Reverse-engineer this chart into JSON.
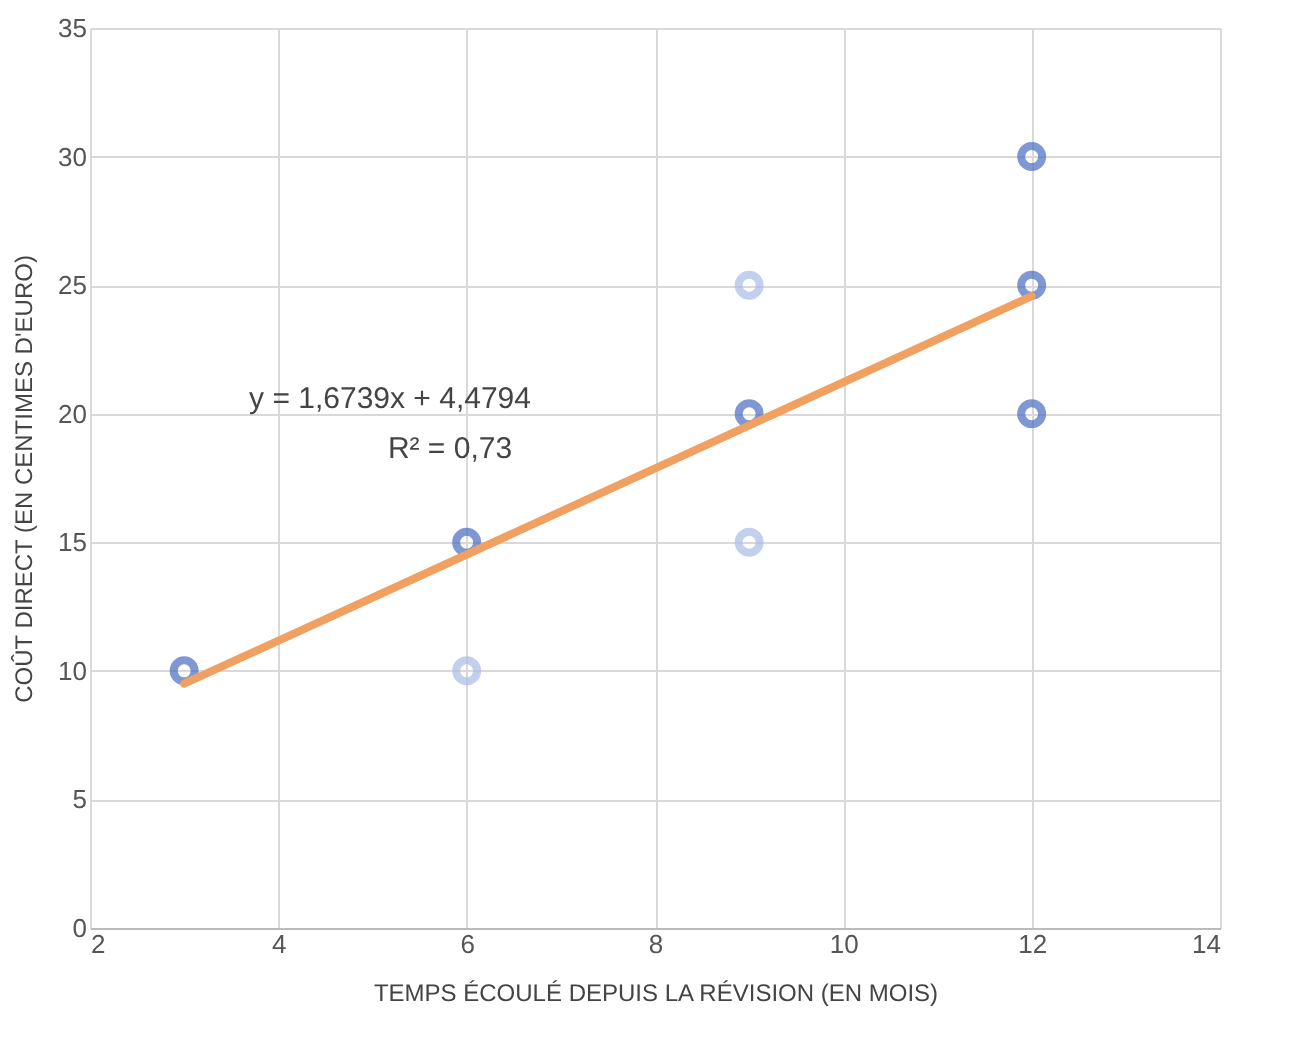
{
  "chart_data": {
    "type": "scatter",
    "xlabel": "TEMPS ÉCOULÉ DEPUIS LA RÉVISION (EN MOIS)",
    "ylabel": "COÛT DIRECT (EN CENTIMES D'EURO)",
    "series": [
      {
        "marker": "circle",
        "x": [
          3,
          6,
          6,
          9,
          9,
          9,
          12,
          12,
          12
        ],
        "values": [
          10,
          15,
          10,
          20,
          25,
          15,
          30,
          25,
          20
        ],
        "colors": [
          "#4a6cc0",
          "#4a6cc0",
          "#a9bde6",
          "#4a6cc0",
          "#a9bde6",
          "#a9bde6",
          "#4a6cc0",
          "#4a6cc0",
          "#4a6cc0"
        ]
      },
      {
        "type": "line",
        "x": [
          3,
          12
        ],
        "values": [
          9.5,
          24.57
        ],
        "color": "#f0a060"
      }
    ],
    "annotations": [
      "y = 1,6739x + 4,4794",
      "R² = 0,73"
    ],
    "xlim": [
      2,
      14
    ],
    "xticks": [
      2,
      4,
      6,
      8,
      10,
      12,
      14
    ],
    "ylim": [
      0,
      35
    ],
    "yticks": [
      0,
      5,
      10,
      15,
      20,
      25,
      30,
      35
    ],
    "grid": true
  }
}
